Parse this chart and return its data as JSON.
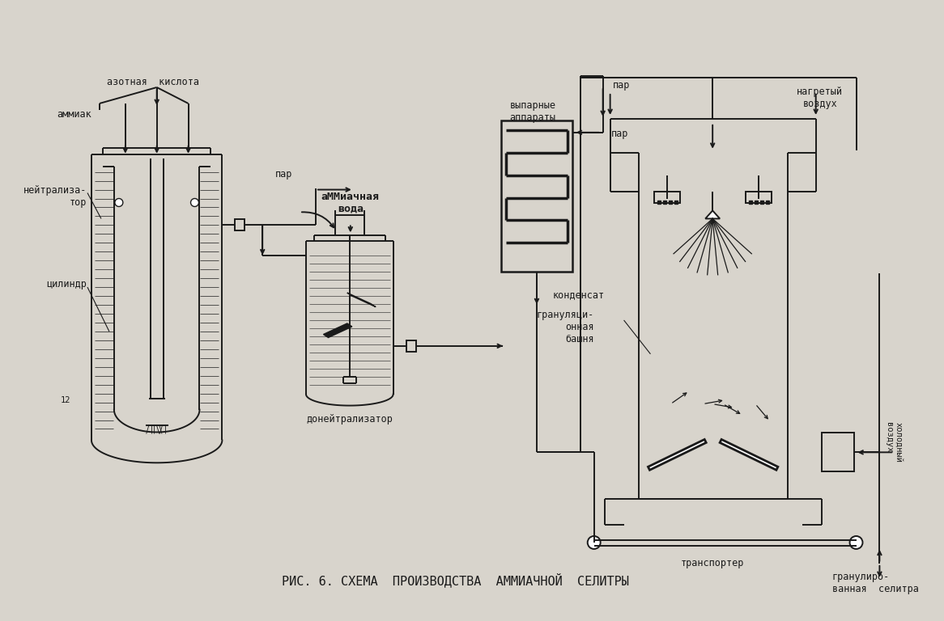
{
  "bg_color": "#d8d4cc",
  "line_color": "#1a1a1a",
  "title": "РИС. 6. СХЕМА  ПРОИЗВОДСТВА  АММИАЧНОЙ  СЕЛИТРЫ",
  "labels": {
    "azot_kislota": "азотная  кислота",
    "ammiak": "аммиак",
    "neytraliz": "нейтрализа-\nтор",
    "tsilindr": "цилиндр",
    "par1": "пар",
    "amm_voda": "аММиачная\nвода",
    "doneytr": "донейтрализатор",
    "vyp_app": "выпарные\nаппараты",
    "par2": "пар",
    "kondensat": "конденсат",
    "gran_bash": "грануляци-\nонная\nбашня",
    "transport": "транспортер",
    "gran_selit": "гранулиро-\nванная  селитра",
    "nagr_vozdux": "нагретый\nвоздух",
    "xol_vozdux": "холодный\nвоздух"
  },
  "fig_w": 11.66,
  "fig_h": 7.68,
  "dpi": 100
}
